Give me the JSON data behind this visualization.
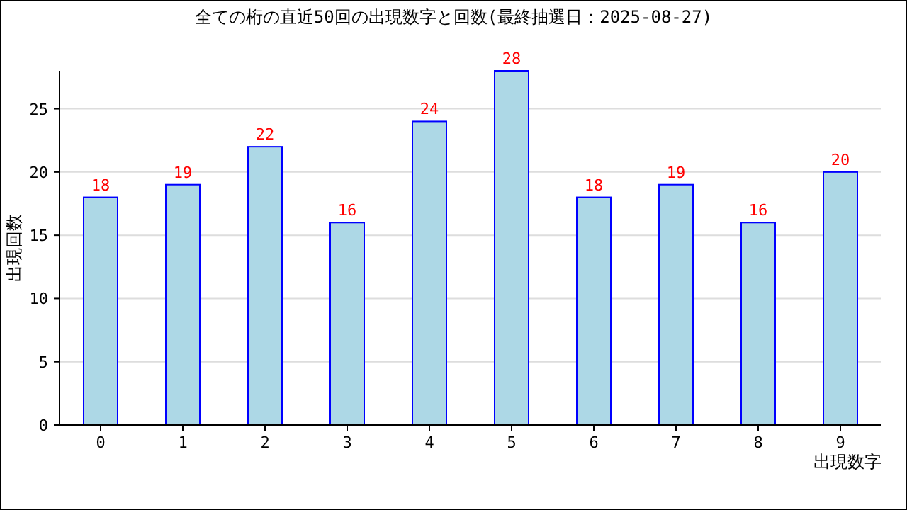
{
  "chart_data": {
    "type": "bar",
    "title": "全ての桁の直近50回の出現数字と回数(最終抽選日：2025-08-27)",
    "xlabel": "出現数字",
    "ylabel": "出現回数",
    "categories": [
      "0",
      "1",
      "2",
      "3",
      "4",
      "5",
      "6",
      "7",
      "8",
      "9"
    ],
    "values": [
      18,
      19,
      22,
      16,
      24,
      28,
      18,
      19,
      16,
      20
    ],
    "color": "#add8e6",
    "ylim": [
      0,
      28
    ],
    "yticks": [
      0,
      5,
      10,
      15,
      20,
      25
    ],
    "grid": "y",
    "data_labels": true
  }
}
